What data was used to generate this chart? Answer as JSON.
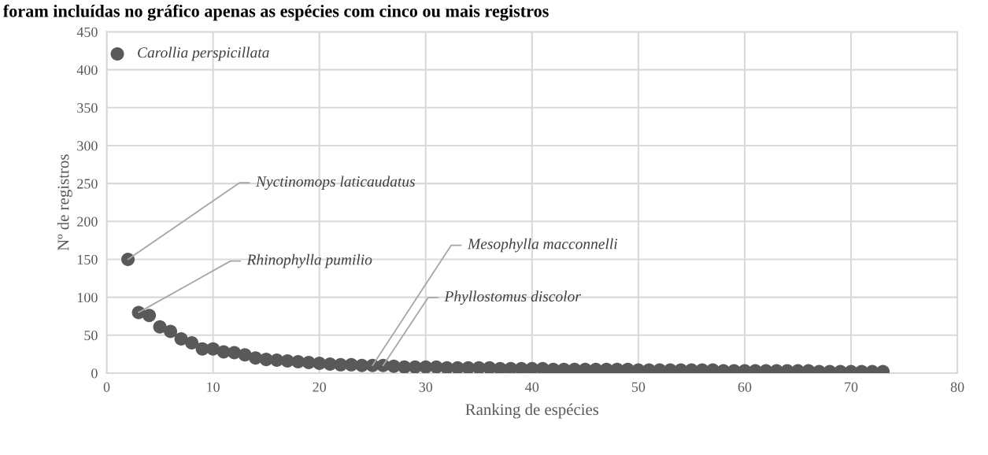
{
  "chart_data": {
    "type": "scatter",
    "title": "foram incluídas no gráfico apenas as espécies com cinco ou mais registros",
    "xlabel": "Ranking de espécies",
    "ylabel": "Nº de registros",
    "x": [
      1,
      2,
      3,
      4,
      5,
      6,
      7,
      8,
      9,
      10,
      11,
      12,
      13,
      14,
      15,
      16,
      17,
      18,
      19,
      20,
      21,
      22,
      23,
      24,
      25,
      26,
      27,
      28,
      29,
      30,
      31,
      32,
      33,
      34,
      35,
      36,
      37,
      38,
      39,
      40,
      41,
      42,
      43,
      44,
      45,
      46,
      47,
      48,
      49,
      50,
      51,
      52,
      53,
      54,
      55,
      56,
      57,
      58,
      59,
      60,
      61,
      62,
      63,
      64,
      65,
      66,
      67,
      68,
      69,
      70,
      71,
      72,
      73
    ],
    "series": [
      {
        "color": "#595959",
        "values": [
          421,
          150,
          80,
          76,
          61,
          55,
          45,
          40,
          32,
          32,
          28,
          27,
          24,
          20,
          18,
          17,
          16,
          15,
          14,
          13,
          12,
          11,
          11,
          10,
          10,
          10,
          9,
          8,
          8,
          8,
          8,
          7,
          7,
          7,
          7,
          7,
          6,
          6,
          6,
          6,
          6,
          5,
          5,
          5,
          5,
          5,
          5,
          5,
          5,
          4,
          4,
          4,
          4,
          4,
          4,
          4,
          4,
          3,
          3,
          3,
          3,
          3,
          3,
          3,
          3,
          3,
          2,
          2,
          2,
          2,
          2,
          2,
          2
        ]
      }
    ],
    "marker": "circle",
    "xlim": [
      0,
      80
    ],
    "xticks": [
      0,
      10,
      20,
      30,
      40,
      50,
      60,
      70,
      80
    ],
    "ylim": [
      0,
      450
    ],
    "yticks": [
      0,
      50,
      100,
      150,
      200,
      250,
      300,
      350,
      400,
      450
    ],
    "grid": true,
    "annotations": [
      {
        "text": "Carollia perspicillata",
        "x": 1,
        "y": 421
      },
      {
        "text": "Nyctinomops laticaudatus",
        "x": 2,
        "y": 150
      },
      {
        "text": "Rhinophylla pumilio",
        "x": 3,
        "y": 80
      },
      {
        "text": "Mesophylla macconnelli",
        "x": 25,
        "y": 10
      },
      {
        "text": "Phyllostomus discolor",
        "x": 26,
        "y": 10
      }
    ]
  }
}
